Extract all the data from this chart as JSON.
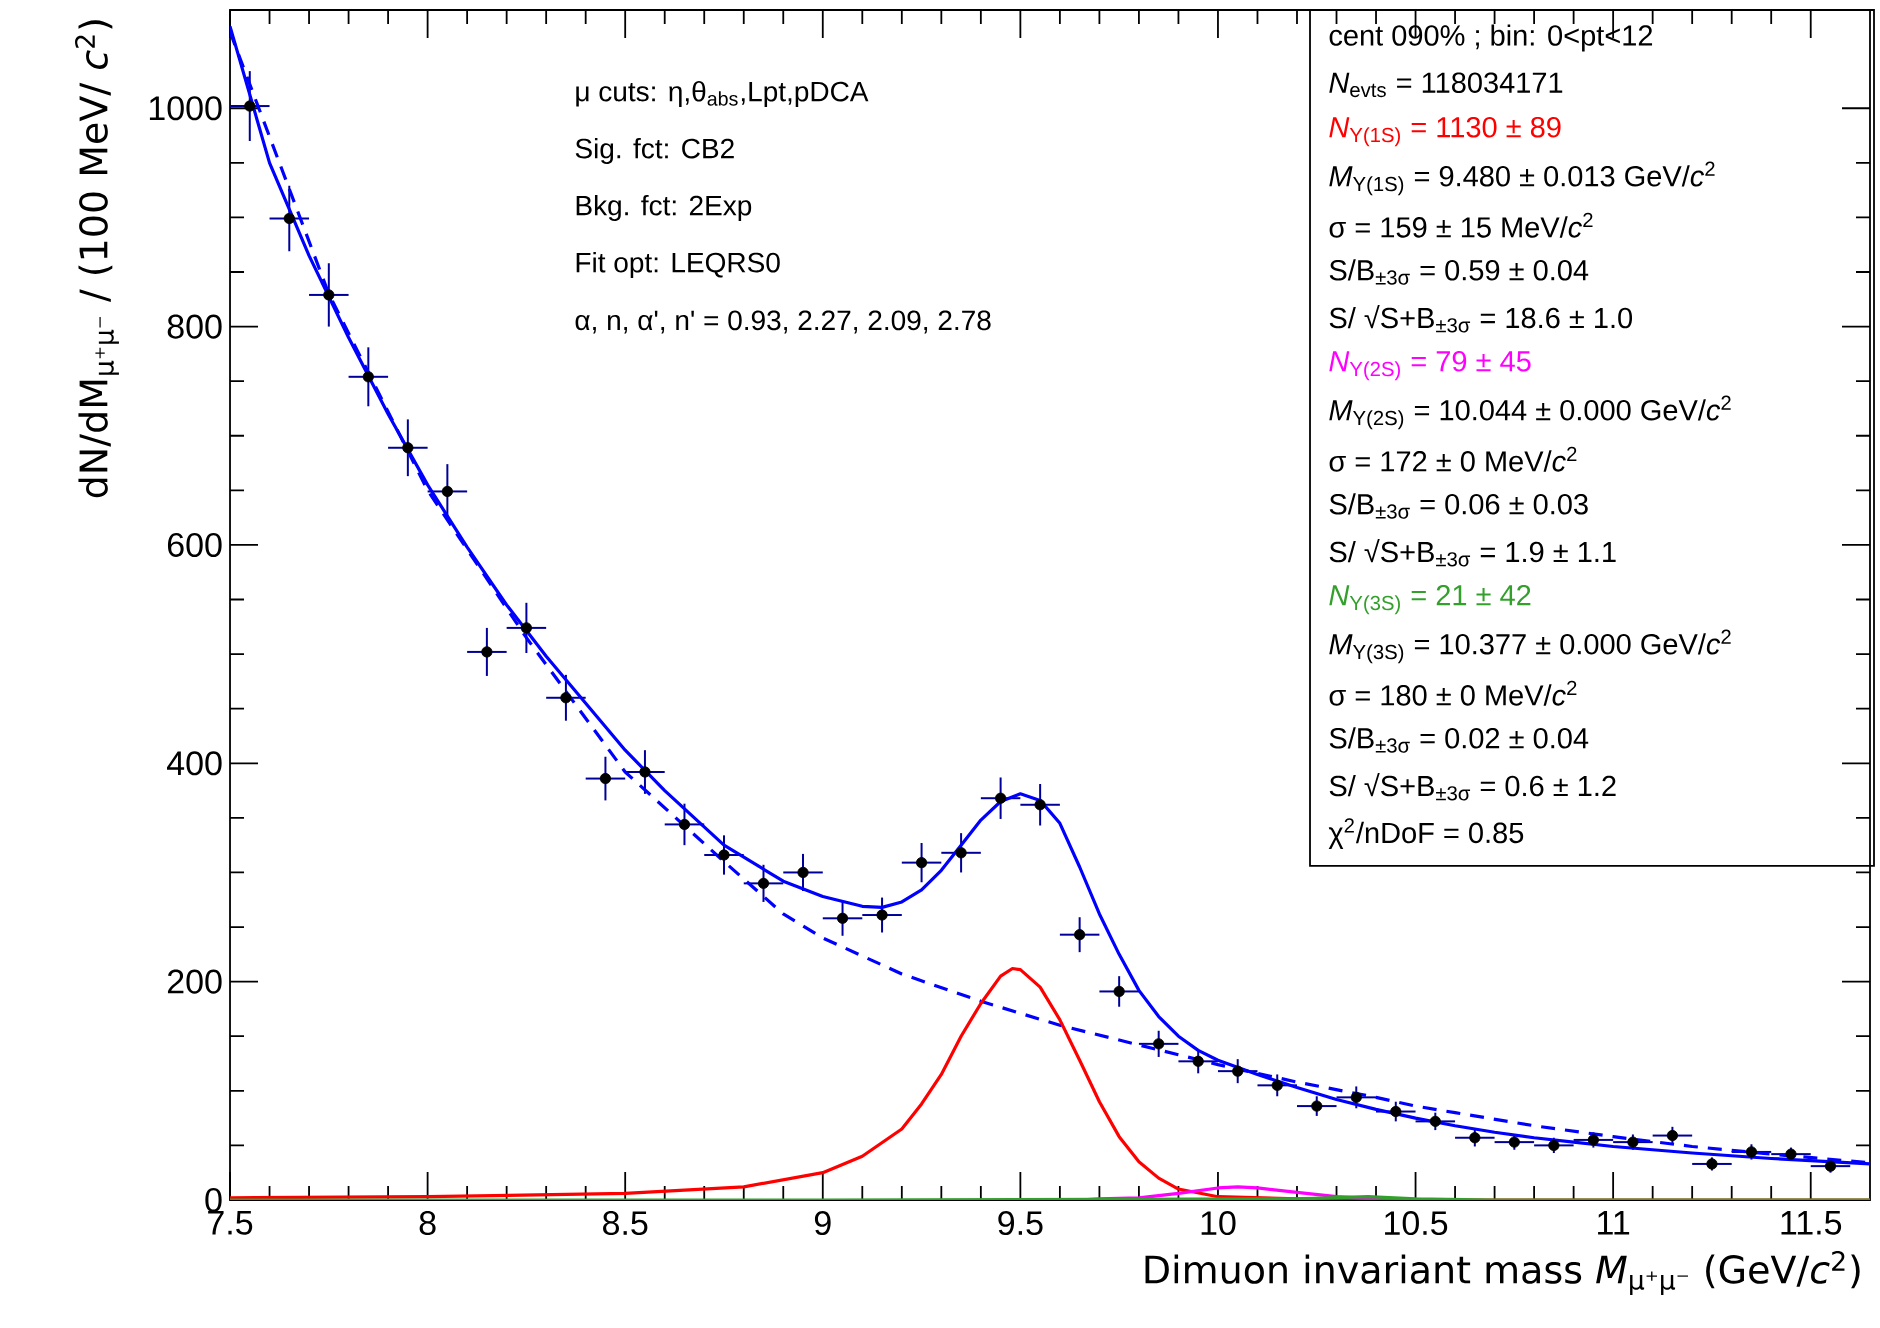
{
  "chart_data": {
    "type": "line",
    "xlabel": "Dimuon invariant mass *M*$_{μ⁺μ⁻}$ (GeV/*c*$^{2}$)",
    "ylabel": "dN/dM$_{μ⁺μ⁻}$ / (100 MeV/ *c*$^{2}$)",
    "xlim": [
      7.5,
      11.65
    ],
    "ylim": [
      0,
      1090
    ],
    "xticks": [
      7.5,
      8,
      8.5,
      9,
      9.5,
      10,
      10.5,
      11,
      11.5
    ],
    "yticks": [
      0,
      200,
      400,
      600,
      800,
      1000
    ],
    "grid": false,
    "series": [
      {
        "type": "scatter",
        "color": "#000000",
        "marker": "circle",
        "x": [
          7.55,
          7.65,
          7.75,
          7.85,
          7.95,
          8.05,
          8.15,
          8.25,
          8.35,
          8.45,
          8.55,
          8.65,
          8.75,
          8.85,
          8.95,
          9.05,
          9.15,
          9.25,
          9.35,
          9.45,
          9.55,
          9.65,
          9.75,
          9.85,
          9.95,
          10.05,
          10.15,
          10.25,
          10.35,
          10.45,
          10.55,
          10.65,
          10.75,
          10.85,
          10.95,
          11.05,
          11.15,
          11.25,
          11.35,
          11.45,
          11.55
        ],
        "values": [
          1002,
          899,
          829,
          754,
          689,
          649,
          502,
          524,
          460,
          386,
          392,
          344,
          316,
          290,
          300,
          258,
          261,
          309,
          318,
          368,
          362,
          243,
          191,
          143,
          127,
          118,
          105,
          86,
          94,
          81,
          72,
          57,
          53,
          50,
          55,
          53,
          59,
          33,
          44,
          42,
          31
        ],
        "errors": [
          32,
          30,
          29,
          27,
          26,
          25,
          22,
          23,
          21,
          20,
          20,
          19,
          18,
          17,
          17,
          16,
          16,
          18,
          18,
          19,
          19,
          16,
          14,
          12,
          11,
          11,
          10,
          9,
          10,
          9,
          8,
          8,
          7,
          7,
          7,
          7,
          8,
          6,
          7,
          6,
          6
        ],
        "xerrors": [
          0.05,
          0.05,
          0.05,
          0.05,
          0.05,
          0.05,
          0.05,
          0.05,
          0.05,
          0.05,
          0.05,
          0.05,
          0.05,
          0.05,
          0.05,
          0.05,
          0.05,
          0.05,
          0.05,
          0.05,
          0.05,
          0.05,
          0.05,
          0.05,
          0.05,
          0.05,
          0.05,
          0.05,
          0.05,
          0.05,
          0.05,
          0.05,
          0.05,
          0.05,
          0.05,
          0.05,
          0.05,
          0.05,
          0.05,
          0.05,
          0.05
        ]
      },
      {
        "color": "#0000ff",
        "marker": "none",
        "line_style": "solid",
        "x": [
          7.5,
          7.6,
          7.7,
          7.8,
          7.9,
          8.0,
          8.1,
          8.2,
          8.3,
          8.4,
          8.5,
          8.6,
          8.75,
          8.9,
          9.0,
          9.1,
          9.15,
          9.2,
          9.25,
          9.3,
          9.35,
          9.4,
          9.45,
          9.5,
          9.55,
          9.6,
          9.65,
          9.7,
          9.75,
          9.8,
          9.85,
          9.9,
          9.95,
          10.0,
          10.1,
          10.2,
          10.3,
          10.4,
          10.5,
          10.6,
          10.7,
          10.8,
          10.9,
          11.0,
          11.2,
          11.4,
          11.65
        ],
        "values": [
          1075,
          950,
          865,
          790,
          720,
          655,
          598,
          545,
          498,
          455,
          412,
          375,
          325,
          292,
          278,
          269,
          268,
          273,
          284,
          302,
          325,
          348,
          365,
          372,
          366,
          345,
          305,
          262,
          225,
          192,
          168,
          150,
          137,
          128,
          115,
          103,
          92,
          83,
          75,
          68,
          62,
          57,
          53,
          49,
          43,
          38,
          33
        ]
      },
      {
        "color": "#0000ff",
        "marker": "none",
        "line_style": "dashed",
        "x": [
          7.5,
          7.75,
          8.0,
          8.25,
          8.5,
          8.75,
          8.9,
          9.0,
          9.2,
          9.4,
          9.5,
          9.6,
          9.8,
          10.0,
          10.2,
          10.4,
          10.5,
          10.6,
          10.8,
          11.0,
          11.2,
          11.4,
          11.65
        ],
        "values": [
          1070,
          830,
          650,
          515,
          392,
          310,
          262,
          240,
          207,
          182,
          171,
          160,
          142,
          124,
          108,
          94,
          86,
          80,
          68,
          58,
          49,
          42,
          34
        ]
      },
      {
        "color": "#ff0000",
        "marker": "none",
        "line_style": "solid",
        "x": [
          7.5,
          8.0,
          8.5,
          8.8,
          9.0,
          9.1,
          9.2,
          9.25,
          9.3,
          9.35,
          9.4,
          9.45,
          9.48,
          9.5,
          9.55,
          9.6,
          9.65,
          9.7,
          9.75,
          9.8,
          9.85,
          9.9,
          10.0,
          10.2,
          10.5,
          11.65
        ],
        "values": [
          2,
          3,
          6,
          12,
          25,
          40,
          65,
          88,
          115,
          150,
          180,
          205,
          212,
          211,
          195,
          165,
          128,
          90,
          58,
          35,
          20,
          10,
          3,
          1,
          0,
          0
        ]
      },
      {
        "color": "#ff00ff",
        "marker": "none",
        "line_style": "solid",
        "x": [
          9.65,
          9.7,
          9.8,
          9.9,
          10.0,
          10.05,
          10.1,
          10.2,
          10.3,
          10.4,
          10.6
        ],
        "values": [
          0,
          1,
          2,
          6,
          11,
          12,
          11,
          7,
          3,
          1,
          0
        ]
      },
      {
        "color": "#33a02c",
        "marker": "none",
        "line_style": "solid",
        "x": [
          7.5,
          9.0,
          10.2,
          10.38,
          10.5,
          10.7,
          11.65
        ],
        "values": [
          0,
          0,
          1,
          3,
          1,
          0,
          0
        ]
      }
    ],
    "annotations": [
      "μ cuts: η,θ$_{abs}$,Lpt,pDCA",
      "Sig. fct: CB2",
      "Bkg. fct: 2Exp",
      "Fit opt: LEQRS0",
      "α, n, α', n' = 0.93, 2.27, 2.09, 2.78",
      "cent 090% ; bin: 0<pt<12",
      "*N*$_{evts}$ = 118034171",
      "*N*$_{Υ(1S)}$ = 1130 ± 89",
      "*M*$_{Υ(1S)}$ = 9.480 ± 0.013 GeV/*c*$^{2}$",
      "σ = 159 ± 15 MeV/*c*$^{2}$",
      "S/B$_{±3σ}$ = 0.59 ± 0.04",
      "S/ √S+B$_{±3σ}$ = 18.6 ± 1.0",
      "*N*$_{Υ(2S)}$ = 79 ± 45",
      "*M*$_{Υ(2S)}$ = 10.044 ± 0.000 GeV/*c*$^{2}$",
      "σ = 172 ± 0 MeV/*c*$^{2}$",
      "S/B$_{±3σ}$ = 0.06 ± 0.03",
      "S/ √S+B$_{±3σ}$ = 1.9 ± 1.1",
      "*N*$_{Υ(3S)}$ = 21 ± 42",
      "*M*$_{Υ(3S)}$ = 10.377 ± 0.000 GeV/*c*$^{2}$",
      "σ = 180 ± 0 MeV/*c*$^{2}$",
      "S/B$_{±3σ}$ = 0.02 ± 0.04",
      "S/ √S+B$_{±3σ}$ = 0.6 ± 1.2",
      "χ$^{2}$/nDoF = 0.85"
    ]
  }
}
